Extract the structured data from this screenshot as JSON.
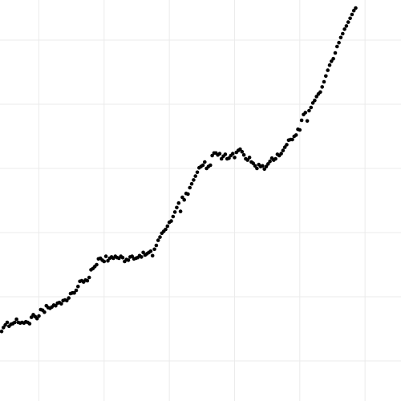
{
  "chart_data": {
    "type": "scatter",
    "title": "",
    "xlabel": "",
    "ylabel": "",
    "xlim": [
      0,
      210
    ],
    "ylim": [
      40,
      100
    ],
    "grid": true,
    "x_gridlines": [
      20,
      55,
      90,
      125,
      160,
      195
    ],
    "y_gridlines": [
      45,
      55,
      65,
      75,
      85,
      95
    ],
    "point_color": "#000000",
    "series": [
      {
        "points": [
          [
            0,
            49.6
          ],
          [
            1,
            50.2
          ],
          [
            2,
            50.6
          ],
          [
            3,
            51.0
          ],
          [
            4,
            50.4
          ],
          [
            5,
            50.7
          ],
          [
            6,
            50.8
          ],
          [
            7,
            51.0
          ],
          [
            8,
            51.5
          ],
          [
            9,
            51.0
          ],
          [
            10,
            50.9
          ],
          [
            11,
            51.0
          ],
          [
            12,
            50.9
          ],
          [
            13,
            51.1
          ],
          [
            14,
            51.0
          ],
          [
            15,
            50.8
          ],
          [
            16,
            51.8
          ],
          [
            17,
            52.2
          ],
          [
            18,
            51.9
          ],
          [
            19,
            51.6
          ],
          [
            20,
            52.0
          ],
          [
            21,
            53.0
          ],
          [
            22,
            52.9
          ],
          [
            23,
            52.6
          ],
          [
            24,
            53.6
          ],
          [
            25,
            53.3
          ],
          [
            26,
            53.2
          ],
          [
            27,
            53.4
          ],
          [
            28,
            53.7
          ],
          [
            29,
            53.6
          ],
          [
            30,
            54.0
          ],
          [
            31,
            54.1
          ],
          [
            32,
            53.9
          ],
          [
            33,
            54.4
          ],
          [
            34,
            54.5
          ],
          [
            35,
            54.4
          ],
          [
            36,
            54.8
          ],
          [
            37,
            55.5
          ],
          [
            38,
            55.6
          ],
          [
            39,
            55.6
          ],
          [
            40,
            56.0
          ],
          [
            41,
            56.6
          ],
          [
            42,
            57.4
          ],
          [
            43,
            57.5
          ],
          [
            44,
            57.3
          ],
          [
            45,
            57.6
          ],
          [
            46,
            57.5
          ],
          [
            47,
            58.0
          ],
          [
            48,
            59.2
          ],
          [
            49,
            59.4
          ],
          [
            50,
            59.7
          ],
          [
            51,
            60.0
          ],
          [
            52,
            60.9
          ],
          [
            53,
            61.0
          ],
          [
            54,
            60.7
          ],
          [
            55,
            60.5
          ],
          [
            56,
            61.3
          ],
          [
            57,
            60.6
          ],
          [
            58,
            61.0
          ],
          [
            59,
            61.2
          ],
          [
            60,
            61.0
          ],
          [
            61,
            61.3
          ],
          [
            62,
            61.1
          ],
          [
            63,
            61.0
          ],
          [
            64,
            61.3
          ],
          [
            65,
            61.1
          ],
          [
            66,
            60.5
          ],
          [
            67,
            60.8
          ],
          [
            68,
            60.7
          ],
          [
            69,
            61.2
          ],
          [
            70,
            61.3
          ],
          [
            71,
            60.9
          ],
          [
            72,
            61.0
          ],
          [
            73,
            61.1
          ],
          [
            74,
            61.4
          ],
          [
            75,
            61.2
          ],
          [
            76,
            61.9
          ],
          [
            77,
            61.5
          ],
          [
            78,
            61.7
          ],
          [
            79,
            61.9
          ],
          [
            80,
            62.1
          ],
          [
            81,
            61.4
          ],
          [
            82,
            62.4
          ],
          [
            83,
            63.0
          ],
          [
            84,
            63.8
          ],
          [
            85,
            64.3
          ],
          [
            86,
            64.9
          ],
          [
            87,
            65.2
          ],
          [
            88,
            65.5
          ],
          [
            89,
            66.0
          ],
          [
            90,
            66.6
          ],
          [
            91,
            66.8
          ],
          [
            92,
            67.5
          ],
          [
            93,
            68.2
          ],
          [
            94,
            68.9
          ],
          [
            95,
            69.6
          ],
          [
            96,
            68.3
          ],
          [
            97,
            70.5
          ],
          [
            98,
            70.1
          ],
          [
            99,
            71.1
          ],
          [
            100,
            71.0
          ],
          [
            101,
            72.0
          ],
          [
            102,
            72.6
          ],
          [
            103,
            73.2
          ],
          [
            104,
            73.8
          ],
          [
            105,
            74.4
          ],
          [
            106,
            75.1
          ],
          [
            107,
            75.3
          ],
          [
            108,
            75.5
          ],
          [
            109,
            76.0
          ],
          [
            110,
            75.0
          ],
          [
            111,
            75.3
          ],
          [
            112,
            75.5
          ],
          [
            113,
            77.0
          ],
          [
            114,
            77.4
          ],
          [
            115,
            77.4
          ],
          [
            116,
            77.1
          ],
          [
            117,
            77.3
          ],
          [
            118,
            76.5
          ],
          [
            119,
            76.9
          ],
          [
            120,
            77.2
          ],
          [
            121,
            76.5
          ],
          [
            122,
            76.6
          ],
          [
            123,
            77.0
          ],
          [
            124,
            77.3
          ],
          [
            125,
            76.7
          ],
          [
            126,
            77.5
          ],
          [
            127,
            77.8
          ],
          [
            128,
            78.0
          ],
          [
            129,
            77.6
          ],
          [
            130,
            77.1
          ],
          [
            131,
            76.5
          ],
          [
            132,
            76.3
          ],
          [
            133,
            76.7
          ],
          [
            134,
            76.0
          ],
          [
            135,
            75.8
          ],
          [
            136,
            75.4
          ],
          [
            137,
            75.0
          ],
          [
            138,
            75.6
          ],
          [
            139,
            75.3
          ],
          [
            140,
            75.4
          ],
          [
            141,
            74.9
          ],
          [
            142,
            75.3
          ],
          [
            143,
            75.7
          ],
          [
            144,
            76.1
          ],
          [
            145,
            76.6
          ],
          [
            146,
            76.3
          ],
          [
            147,
            76.5
          ],
          [
            148,
            77.2
          ],
          [
            149,
            77.0
          ],
          [
            150,
            77.3
          ],
          [
            151,
            77.8
          ],
          [
            152,
            78.3
          ],
          [
            153,
            78.7
          ],
          [
            154,
            79.4
          ],
          [
            155,
            79.5
          ],
          [
            156,
            79.5
          ],
          [
            157,
            80.0
          ],
          [
            158,
            80.2
          ],
          [
            159,
            81.1
          ],
          [
            160,
            81.0
          ],
          [
            161,
            82.5
          ],
          [
            162,
            83.4
          ],
          [
            163,
            83.7
          ],
          [
            164,
            82.4
          ],
          [
            165,
            84.0
          ],
          [
            166,
            84.5
          ],
          [
            167,
            85.2
          ],
          [
            168,
            85.6
          ],
          [
            169,
            86.2
          ],
          [
            170,
            86.6
          ],
          [
            171,
            86.9
          ],
          [
            172,
            87.7
          ],
          [
            173,
            88.5
          ],
          [
            174,
            89.4
          ],
          [
            175,
            90.3
          ],
          [
            176,
            91.1
          ],
          [
            177,
            91.7
          ],
          [
            178,
            92.1
          ],
          [
            179,
            93.0
          ],
          [
            180,
            94.0
          ],
          [
            181,
            94.6
          ],
          [
            182,
            95.4
          ],
          [
            183,
            96.0
          ],
          [
            184,
            96.7
          ],
          [
            185,
            97.2
          ],
          [
            186,
            97.8
          ],
          [
            187,
            98.4
          ],
          [
            188,
            99.0
          ],
          [
            189,
            99.6
          ],
          [
            190,
            100.0
          ]
        ]
      }
    ]
  }
}
